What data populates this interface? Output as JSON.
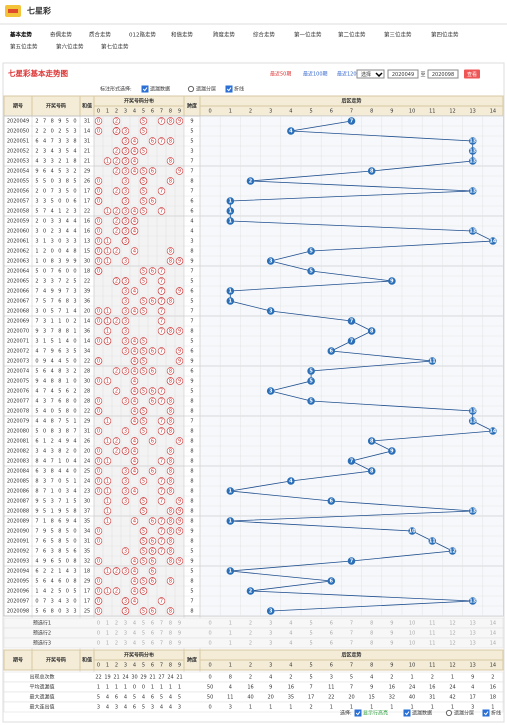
{
  "header": {
    "title": "七星彩"
  },
  "nav": [
    "基本走势",
    "奇偶走势",
    "质合走势",
    "012路走势",
    "和值走势",
    "跨度走势",
    "综合走势",
    "第一位走势",
    "第二位走势",
    "第三位走势",
    "第四位走势",
    "第五位走势",
    "第六位走势",
    "第七位走势"
  ],
  "panel": {
    "title": "七星彩基本走势图",
    "ranges": [
      "最近50期",
      "最近100期",
      "最近120期"
    ],
    "select": "选择",
    "from": "2020049",
    "to_label": "至",
    "to": "2020098",
    "submit": "查看",
    "mark_label": "标注形式选择:",
    "options": [
      {
        "text": "遗漏数据",
        "kind": "checkbox",
        "checked": true
      },
      {
        "text": "遗漏分层",
        "kind": "radio",
        "checked": false
      },
      {
        "text": "折线",
        "kind": "checkbox",
        "checked": true
      }
    ]
  },
  "table": {
    "columns": {
      "issue": "期号",
      "draw": "开奖号码",
      "sum": "和值",
      "distribution": "开奖号码分布",
      "span": "跨度",
      "back": "后区走势"
    },
    "digits": [
      0,
      1,
      2,
      3,
      4,
      5,
      6,
      7,
      8,
      9
    ],
    "back_digits": [
      0,
      1,
      2,
      3,
      4,
      5,
      6,
      7,
      8,
      9,
      10,
      11,
      12,
      13,
      14
    ],
    "issues": [
      "2020049",
      "2020050",
      "2020051",
      "2020052",
      "2020053",
      "2020054",
      "2020055",
      "2020056",
      "2020057",
      "2020058",
      "2020059",
      "2020060",
      "2020061",
      "2020062",
      "2020063",
      "2020064",
      "2020065",
      "2020066",
      "2020067",
      "2020068",
      "2020069",
      "2020070",
      "2020071",
      "2020072",
      "2020073",
      "2020074",
      "2020075",
      "2020076",
      "2020077",
      "2020078",
      "2020079",
      "2020080",
      "2020081",
      "2020082",
      "2020083",
      "2020084",
      "2020085",
      "2020086",
      "2020087",
      "2020088",
      "2020089",
      "2020090",
      "2020091",
      "2020092",
      "2020093",
      "2020094",
      "2020095",
      "2020096",
      "2020097",
      "2020098"
    ],
    "draws": [
      [
        2,
        7,
        8,
        9,
        5,
        0
      ],
      [
        2,
        2,
        0,
        2,
        5,
        3
      ],
      [
        6,
        4,
        7,
        3,
        3,
        8
      ],
      [
        2,
        3,
        4,
        3,
        5,
        4
      ],
      [
        4,
        3,
        3,
        2,
        1,
        8
      ],
      [
        9,
        6,
        4,
        5,
        3,
        2
      ],
      [
        5,
        5,
        0,
        3,
        8,
        5
      ],
      [
        2,
        0,
        7,
        3,
        5,
        0
      ],
      [
        3,
        3,
        5,
        0,
        0,
        6
      ],
      [
        5,
        7,
        4,
        1,
        2,
        3
      ],
      [
        2,
        0,
        3,
        3,
        4,
        4
      ],
      [
        3,
        0,
        2,
        3,
        4,
        4
      ],
      [
        3,
        1,
        3,
        0,
        3,
        3
      ],
      [
        1,
        2,
        0,
        0,
        4,
        8
      ],
      [
        1,
        0,
        8,
        3,
        9,
        9
      ],
      [
        5,
        0,
        7,
        6,
        0,
        0
      ],
      [
        2,
        3,
        3,
        7,
        2,
        5
      ],
      [
        7,
        4,
        9,
        9,
        7,
        3
      ],
      [
        7,
        5,
        7,
        6,
        8,
        3
      ],
      [
        3,
        0,
        5,
        7,
        1,
        4
      ],
      [
        7,
        3,
        1,
        1,
        0,
        2
      ],
      [
        9,
        3,
        7,
        8,
        8,
        1
      ],
      [
        3,
        1,
        5,
        1,
        4,
        0
      ],
      [
        4,
        7,
        9,
        6,
        3,
        5
      ],
      [
        0,
        9,
        4,
        4,
        5,
        0
      ],
      [
        5,
        6,
        4,
        8,
        3,
        2
      ],
      [
        9,
        4,
        8,
        8,
        1,
        0
      ],
      [
        4,
        7,
        4,
        5,
        6,
        2
      ],
      [
        4,
        3,
        7,
        6,
        8,
        0
      ],
      [
        5,
        4,
        0,
        5,
        8,
        0
      ],
      [
        4,
        4,
        8,
        7,
        5,
        1
      ],
      [
        5,
        0,
        8,
        3,
        8,
        7
      ],
      [
        6,
        1,
        2,
        4,
        9,
        4
      ],
      [
        3,
        4,
        3,
        8,
        2,
        0
      ],
      [
        8,
        4,
        7,
        1,
        0,
        4
      ],
      [
        6,
        3,
        8,
        4,
        4,
        0
      ],
      [
        8,
        3,
        7,
        0,
        5,
        1
      ],
      [
        8,
        7,
        1,
        0,
        3,
        4
      ],
      [
        9,
        5,
        3,
        7,
        1,
        5
      ],
      [
        9,
        5,
        1,
        9,
        5,
        8
      ],
      [
        7,
        1,
        8,
        6,
        9,
        4
      ],
      [
        7,
        9,
        5,
        8,
        5,
        0
      ],
      [
        7,
        6,
        5,
        8,
        5,
        0
      ],
      [
        7,
        6,
        3,
        8,
        5,
        6
      ],
      [
        4,
        9,
        6,
        5,
        0,
        8
      ],
      [
        6,
        2,
        2,
        1,
        4,
        3
      ],
      [
        5,
        6,
        4,
        6,
        0,
        8
      ],
      [
        1,
        4,
        2,
        5,
        0,
        5
      ],
      [
        0,
        7,
        3,
        4,
        3,
        0
      ],
      [
        5,
        6,
        8,
        0,
        3,
        3
      ]
    ],
    "sums": [
      31,
      14,
      31,
      21,
      21,
      29,
      26,
      17,
      17,
      22,
      16,
      16,
      13,
      15,
      30,
      18,
      22,
      39,
      36,
      20,
      14,
      36,
      14,
      34,
      22,
      28,
      30,
      28,
      28,
      22,
      29,
      31,
      26,
      20,
      24,
      25,
      24,
      23,
      30,
      37,
      35,
      34,
      31,
      35,
      32,
      18,
      29,
      17,
      17,
      25
    ],
    "spans": [
      9,
      5,
      5,
      3,
      7,
      7,
      8,
      7,
      6,
      6,
      4,
      4,
      3,
      8,
      9,
      7,
      5,
      6,
      5,
      7,
      7,
      8,
      5,
      6,
      9,
      6,
      9,
      5,
      8,
      8,
      7,
      8,
      8,
      8,
      8,
      8,
      8,
      8,
      8,
      8,
      8,
      9,
      8,
      5,
      9,
      5,
      8,
      5,
      7,
      8
    ],
    "back": [
      7,
      4,
      13,
      13,
      13,
      8,
      2,
      13,
      1,
      1,
      1,
      13,
      14,
      5,
      3,
      5,
      9,
      1,
      1,
      3,
      7,
      8,
      7,
      6,
      11,
      5,
      5,
      3,
      5,
      13,
      13,
      14,
      8,
      9,
      7,
      8,
      4,
      1,
      6,
      13,
      1,
      10,
      11,
      12,
      7,
      1,
      6,
      2,
      13,
      3
    ],
    "preselect": [
      "预选行1",
      "预选行2",
      "预选行3"
    ],
    "stats": [
      {
        "label": "出现总次数",
        "distribution": [
          22,
          19,
          21,
          24,
          30,
          29,
          21,
          27,
          24,
          21
        ],
        "back": [
          0,
          8,
          2,
          4,
          2,
          5,
          3,
          5,
          4,
          2,
          1,
          2,
          1,
          9,
          2
        ]
      },
      {
        "label": "平均遗漏值",
        "distribution": [
          1,
          1,
          1,
          1,
          0,
          0,
          1,
          1,
          1,
          1
        ],
        "back": [
          50,
          4,
          16,
          9,
          16,
          7,
          11,
          7,
          9,
          16,
          24,
          16,
          24,
          4,
          16
        ]
      },
      {
        "label": "最大遗漏值",
        "distribution": [
          5,
          4,
          6,
          4,
          5,
          4,
          6,
          5,
          4,
          5
        ],
        "back": [
          50,
          11,
          40,
          20,
          35,
          17,
          22,
          20,
          15,
          32,
          40,
          31,
          42,
          17,
          18
        ]
      },
      {
        "label": "最大连出值",
        "distribution": [
          3,
          4,
          3,
          4,
          6,
          5,
          3,
          4,
          4,
          3
        ],
        "back": [
          0,
          3,
          1,
          1,
          1,
          2,
          1,
          1,
          1,
          1,
          1,
          1,
          1,
          3,
          1
        ]
      }
    ]
  },
  "footer": {
    "label": "选择:",
    "options": [
      {
        "text": "显示行高亮",
        "kind": "checkbox",
        "checked": true
      },
      {
        "text": "遗漏数据",
        "kind": "checkbox",
        "checked": true
      },
      {
        "text": "遗漏分层",
        "kind": "radio",
        "checked": false
      },
      {
        "text": "折线",
        "kind": "checkbox",
        "checked": true
      }
    ]
  }
}
